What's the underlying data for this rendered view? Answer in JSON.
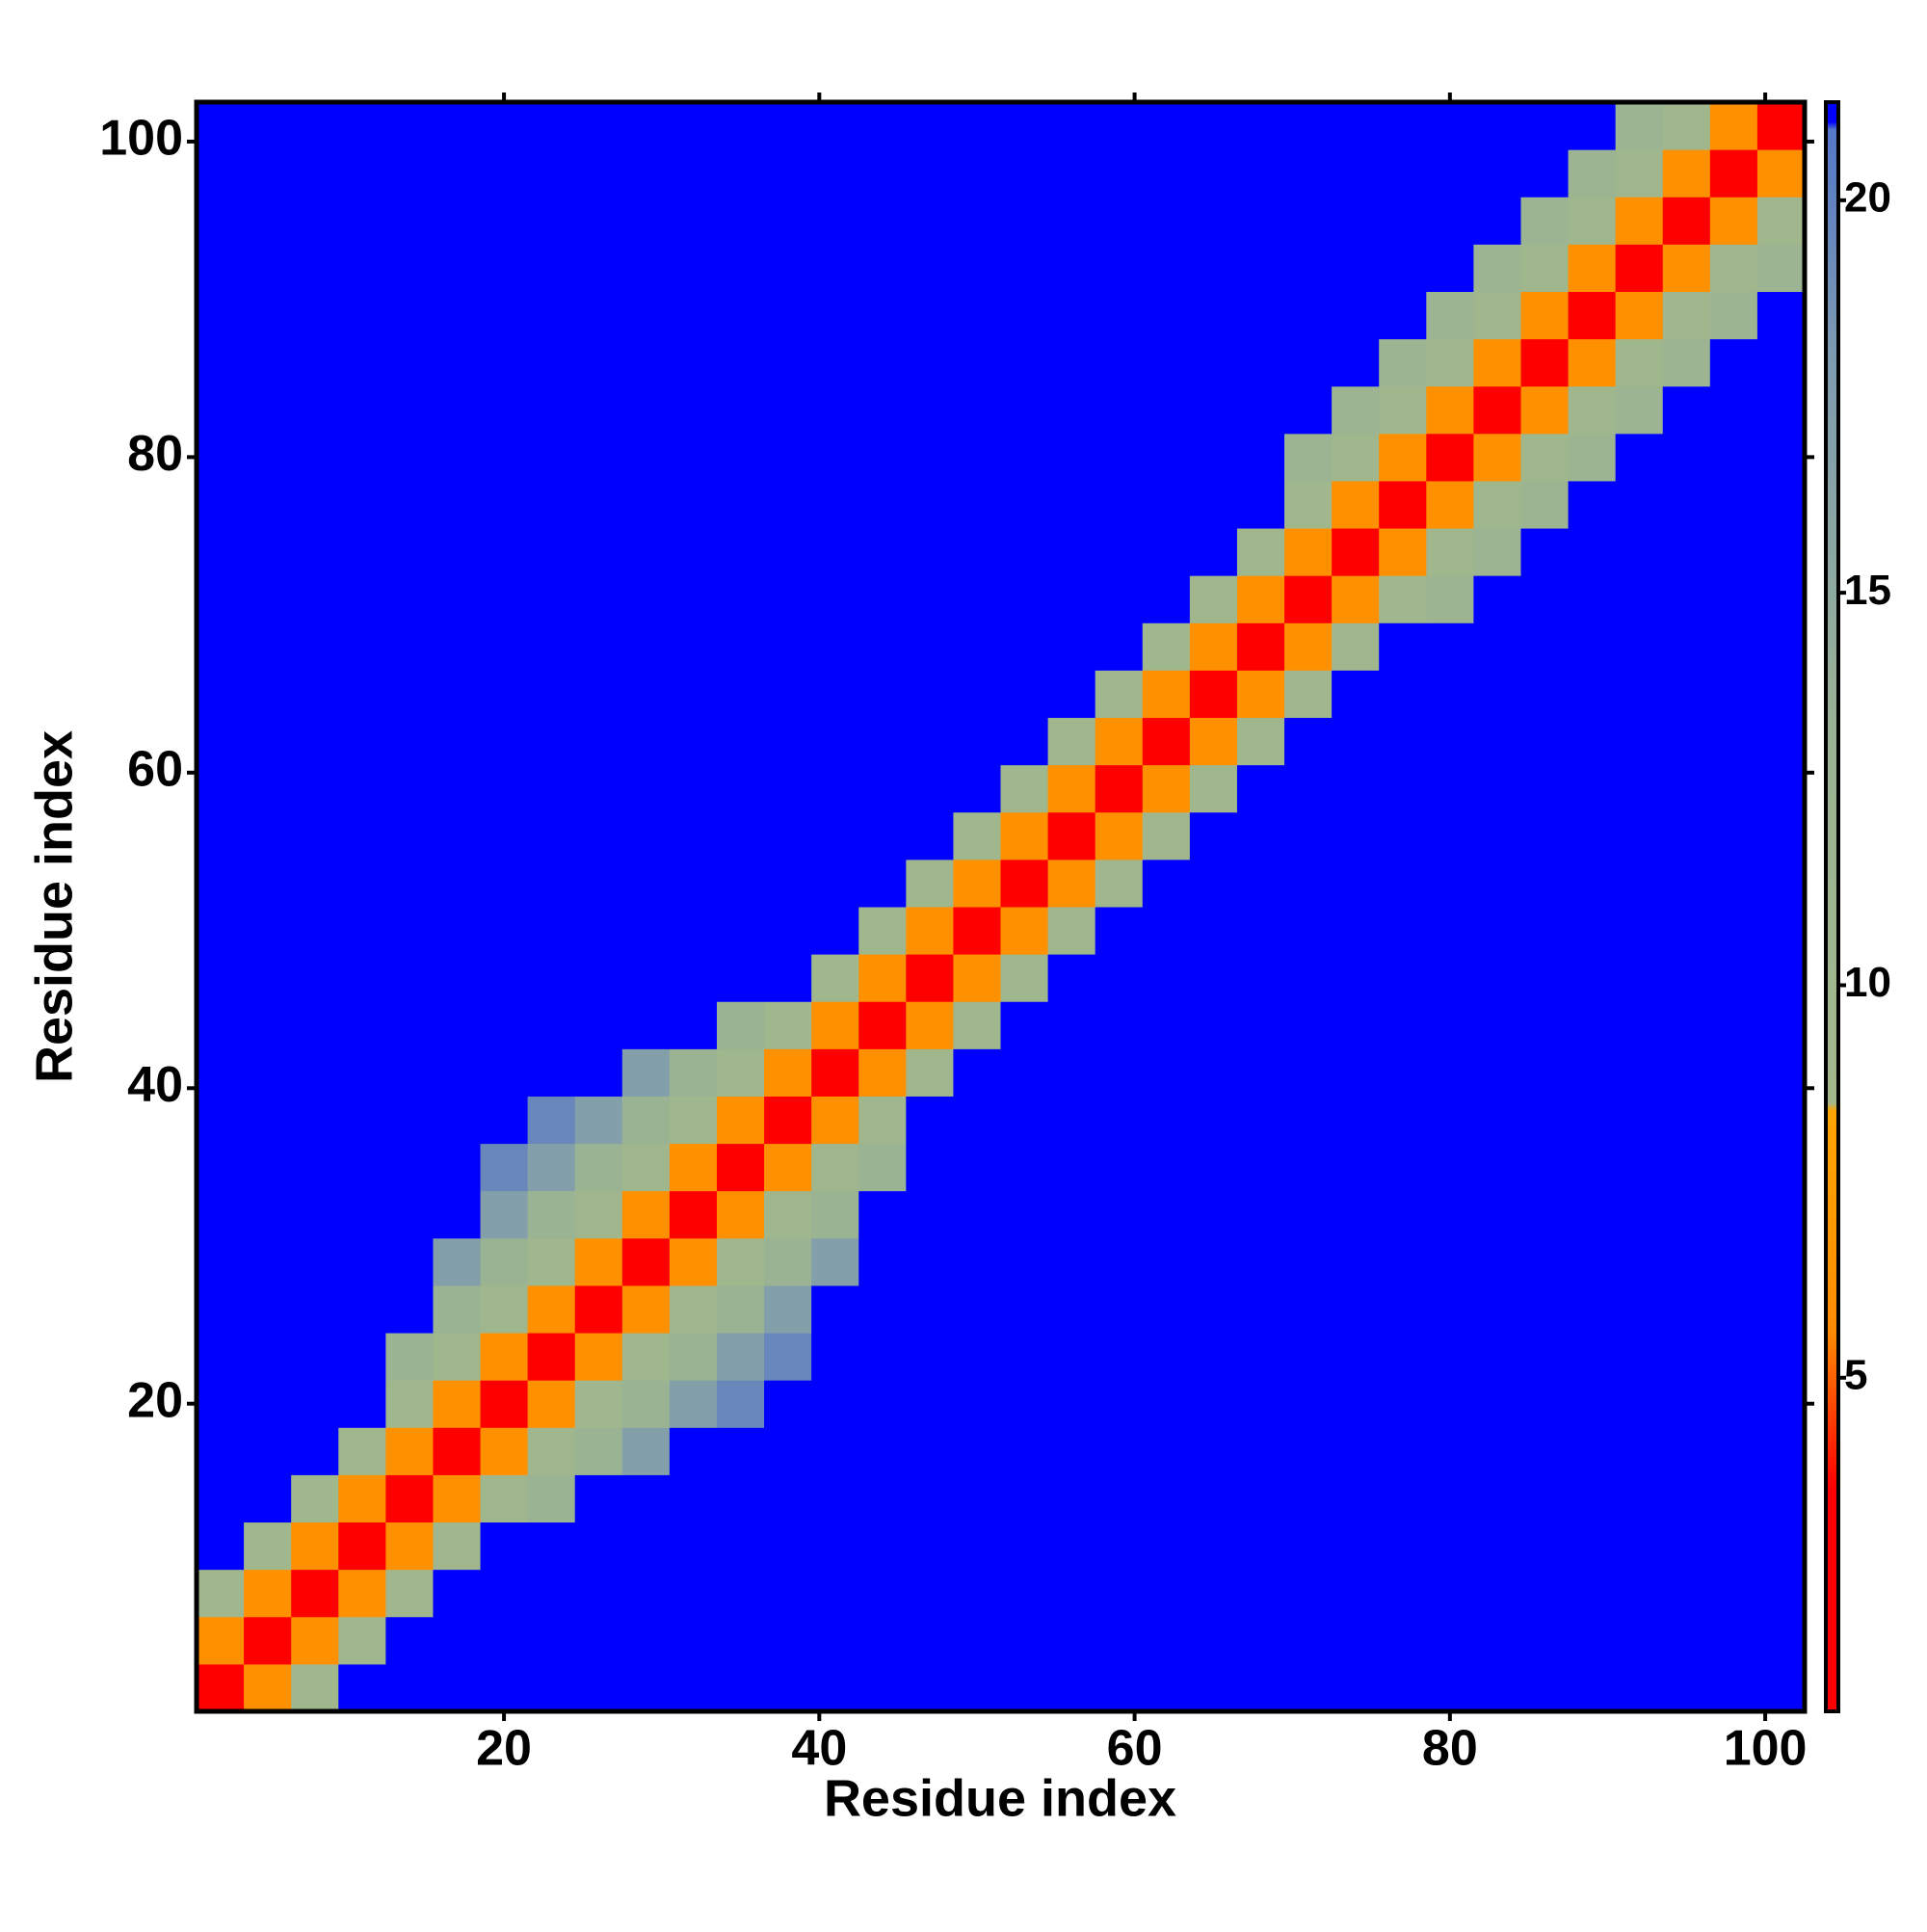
{
  "chart_data": {
    "type": "heatmap",
    "xlabel": "Residue index",
    "ylabel": "Residue index",
    "x": [
      2,
      5,
      8,
      11,
      14,
      17,
      20,
      23,
      26,
      29,
      32,
      35,
      38,
      41,
      44,
      47,
      50,
      53,
      56,
      59,
      62,
      65,
      68,
      71,
      74,
      77,
      80,
      83,
      86,
      89,
      92,
      95,
      98,
      101
    ],
    "y": [
      2,
      5,
      8,
      11,
      14,
      17,
      20,
      23,
      26,
      29,
      32,
      35,
      38,
      41,
      44,
      47,
      50,
      53,
      56,
      59,
      62,
      65,
      68,
      71,
      74,
      77,
      80,
      83,
      86,
      89,
      92,
      95,
      98,
      101
    ],
    "z": [
      [
        1.5,
        6,
        10,
        21,
        21,
        21,
        21,
        21,
        21,
        21,
        21,
        21,
        21,
        21,
        21,
        21,
        21,
        21,
        21,
        21,
        21,
        21,
        21,
        21,
        21,
        21,
        21,
        21,
        21,
        21,
        21,
        21,
        21,
        21
      ],
      [
        6,
        1.5,
        6,
        10,
        21,
        21,
        21,
        21,
        21,
        21,
        21,
        21,
        21,
        21,
        21,
        21,
        21,
        21,
        21,
        21,
        21,
        21,
        21,
        21,
        21,
        21,
        21,
        21,
        21,
        21,
        21,
        21,
        21,
        21
      ],
      [
        10,
        6,
        1.5,
        6,
        10,
        21,
        21,
        21,
        21,
        21,
        21,
        21,
        21,
        21,
        21,
        21,
        21,
        21,
        21,
        21,
        21,
        21,
        21,
        21,
        21,
        21,
        21,
        21,
        21,
        21,
        21,
        21,
        21,
        21
      ],
      [
        21,
        10,
        6,
        1.5,
        6,
        10,
        21,
        21,
        21,
        21,
        21,
        21,
        21,
        21,
        21,
        21,
        21,
        21,
        21,
        21,
        21,
        21,
        21,
        21,
        21,
        21,
        21,
        21,
        21,
        21,
        21,
        21,
        21,
        21
      ],
      [
        21,
        21,
        10,
        6,
        1.5,
        6,
        10,
        13,
        21,
        21,
        21,
        21,
        21,
        21,
        21,
        21,
        21,
        21,
        21,
        21,
        21,
        21,
        21,
        21,
        21,
        21,
        21,
        21,
        21,
        21,
        21,
        21,
        21,
        21
      ],
      [
        21,
        21,
        21,
        10,
        6,
        1.5,
        6,
        10,
        13,
        17,
        21,
        21,
        21,
        21,
        21,
        21,
        21,
        21,
        21,
        21,
        21,
        21,
        21,
        21,
        21,
        21,
        21,
        21,
        21,
        21,
        21,
        21,
        21,
        21
      ],
      [
        21,
        21,
        21,
        21,
        10,
        6,
        1.5,
        6,
        10,
        13,
        17,
        19.5,
        21,
        21,
        21,
        21,
        21,
        21,
        21,
        21,
        21,
        21,
        21,
        21,
        21,
        21,
        21,
        21,
        21,
        21,
        21,
        21,
        21,
        21
      ],
      [
        21,
        21,
        21,
        21,
        13,
        10,
        6,
        1.5,
        6,
        10,
        13,
        17,
        19.5,
        21,
        21,
        21,
        21,
        21,
        21,
        21,
        21,
        21,
        21,
        21,
        21,
        21,
        21,
        21,
        21,
        21,
        21,
        21,
        21,
        21
      ],
      [
        21,
        21,
        21,
        21,
        21,
        13,
        10,
        6,
        1.5,
        6,
        10,
        13,
        17,
        21,
        21,
        21,
        21,
        21,
        21,
        21,
        21,
        21,
        21,
        21,
        21,
        21,
        21,
        21,
        21,
        21,
        21,
        21,
        21,
        21
      ],
      [
        21,
        21,
        21,
        21,
        21,
        17,
        13,
        10,
        6,
        1.5,
        6,
        10,
        13,
        17,
        21,
        21,
        21,
        21,
        21,
        21,
        21,
        21,
        21,
        21,
        21,
        21,
        21,
        21,
        21,
        21,
        21,
        21,
        21,
        21
      ],
      [
        21,
        21,
        21,
        21,
        21,
        21,
        17,
        13,
        10,
        6,
        1.5,
        6,
        10,
        13,
        21,
        21,
        21,
        21,
        21,
        21,
        21,
        21,
        21,
        21,
        21,
        21,
        21,
        21,
        21,
        21,
        21,
        21,
        21,
        21
      ],
      [
        21,
        21,
        21,
        21,
        21,
        21,
        19.5,
        17,
        13,
        10,
        6,
        1.5,
        6,
        10,
        13,
        21,
        21,
        21,
        21,
        21,
        21,
        21,
        21,
        21,
        21,
        21,
        21,
        21,
        21,
        21,
        21,
        21,
        21,
        21
      ],
      [
        21,
        21,
        21,
        21,
        21,
        21,
        21,
        19.5,
        17,
        13,
        10,
        6,
        1.5,
        6,
        10,
        21,
        21,
        21,
        21,
        21,
        21,
        21,
        21,
        21,
        21,
        21,
        21,
        21,
        21,
        21,
        21,
        21,
        21,
        21
      ],
      [
        21,
        21,
        21,
        21,
        21,
        21,
        21,
        21,
        21,
        17,
        13,
        10,
        6,
        1.5,
        6,
        10,
        21,
        21,
        21,
        21,
        21,
        21,
        21,
        21,
        21,
        21,
        21,
        21,
        21,
        21,
        21,
        21,
        21,
        21
      ],
      [
        21,
        21,
        21,
        21,
        21,
        21,
        21,
        21,
        21,
        21,
        21,
        13,
        10,
        6,
        1.5,
        6,
        10,
        21,
        21,
        21,
        21,
        21,
        21,
        21,
        21,
        21,
        21,
        21,
        21,
        21,
        21,
        21,
        21,
        21
      ],
      [
        21,
        21,
        21,
        21,
        21,
        21,
        21,
        21,
        21,
        21,
        21,
        21,
        21,
        10,
        6,
        1.5,
        6,
        10,
        21,
        21,
        21,
        21,
        21,
        21,
        21,
        21,
        21,
        21,
        21,
        21,
        21,
        21,
        21,
        21
      ],
      [
        21,
        21,
        21,
        21,
        21,
        21,
        21,
        21,
        21,
        21,
        21,
        21,
        21,
        21,
        10,
        6,
        1.5,
        6,
        10,
        21,
        21,
        21,
        21,
        21,
        21,
        21,
        21,
        21,
        21,
        21,
        21,
        21,
        21,
        21
      ],
      [
        21,
        21,
        21,
        21,
        21,
        21,
        21,
        21,
        21,
        21,
        21,
        21,
        21,
        21,
        21,
        10,
        6,
        1.5,
        6,
        10,
        21,
        21,
        21,
        21,
        21,
        21,
        21,
        21,
        21,
        21,
        21,
        21,
        21,
        21
      ],
      [
        21,
        21,
        21,
        21,
        21,
        21,
        21,
        21,
        21,
        21,
        21,
        21,
        21,
        21,
        21,
        21,
        10,
        6,
        1.5,
        6,
        10,
        21,
        21,
        21,
        21,
        21,
        21,
        21,
        21,
        21,
        21,
        21,
        21,
        21
      ],
      [
        21,
        21,
        21,
        21,
        21,
        21,
        21,
        21,
        21,
        21,
        21,
        21,
        21,
        21,
        21,
        21,
        21,
        10,
        6,
        1.5,
        6,
        10,
        21,
        21,
        21,
        21,
        21,
        21,
        21,
        21,
        21,
        21,
        21,
        21
      ],
      [
        21,
        21,
        21,
        21,
        21,
        21,
        21,
        21,
        21,
        21,
        21,
        21,
        21,
        21,
        21,
        21,
        21,
        21,
        10,
        6,
        1.5,
        6,
        10,
        21,
        21,
        21,
        21,
        21,
        21,
        21,
        21,
        21,
        21,
        21
      ],
      [
        21,
        21,
        21,
        21,
        21,
        21,
        21,
        21,
        21,
        21,
        21,
        21,
        21,
        21,
        21,
        21,
        21,
        21,
        21,
        10,
        6,
        1.5,
        6,
        10,
        21,
        21,
        21,
        21,
        21,
        21,
        21,
        21,
        21,
        21
      ],
      [
        21,
        21,
        21,
        21,
        21,
        21,
        21,
        21,
        21,
        21,
        21,
        21,
        21,
        21,
        21,
        21,
        21,
        21,
        21,
        21,
        10,
        6,
        1.5,
        6,
        10,
        21,
        21,
        21,
        21,
        21,
        21,
        21,
        21,
        21
      ],
      [
        21,
        21,
        21,
        21,
        21,
        21,
        21,
        21,
        21,
        21,
        21,
        21,
        21,
        21,
        21,
        21,
        21,
        21,
        21,
        21,
        21,
        10,
        6,
        1.5,
        6,
        10,
        12,
        21,
        21,
        21,
        21,
        21,
        21,
        21
      ],
      [
        21,
        21,
        21,
        21,
        21,
        21,
        21,
        21,
        21,
        21,
        21,
        21,
        21,
        21,
        21,
        21,
        21,
        21,
        21,
        21,
        21,
        21,
        10,
        6,
        1.5,
        6,
        10,
        12,
        21,
        21,
        21,
        21,
        21,
        21
      ],
      [
        21,
        21,
        21,
        21,
        21,
        21,
        21,
        21,
        21,
        21,
        21,
        21,
        21,
        21,
        21,
        21,
        21,
        21,
        21,
        21,
        21,
        21,
        21,
        10,
        6,
        1.5,
        6,
        10,
        12,
        21,
        21,
        21,
        21,
        21
      ],
      [
        21,
        21,
        21,
        21,
        21,
        21,
        21,
        21,
        21,
        21,
        21,
        21,
        21,
        21,
        21,
        21,
        21,
        21,
        21,
        21,
        21,
        21,
        21,
        12,
        10,
        6,
        1.5,
        6,
        10,
        12,
        21,
        21,
        21,
        21
      ],
      [
        21,
        21,
        21,
        21,
        21,
        21,
        21,
        21,
        21,
        21,
        21,
        21,
        21,
        21,
        21,
        21,
        21,
        21,
        21,
        21,
        21,
        21,
        21,
        21,
        12,
        10,
        6,
        1.5,
        6,
        10,
        12,
        21,
        21,
        21
      ],
      [
        21,
        21,
        21,
        21,
        21,
        21,
        21,
        21,
        21,
        21,
        21,
        21,
        21,
        21,
        21,
        21,
        21,
        21,
        21,
        21,
        21,
        21,
        21,
        21,
        21,
        12,
        10,
        6,
        1.5,
        6,
        10,
        12,
        21,
        21
      ],
      [
        21,
        21,
        21,
        21,
        21,
        21,
        21,
        21,
        21,
        21,
        21,
        21,
        21,
        21,
        21,
        21,
        21,
        21,
        21,
        21,
        21,
        21,
        21,
        21,
        21,
        21,
        12,
        10,
        6,
        1.5,
        6,
        10,
        12,
        21
      ],
      [
        21,
        21,
        21,
        21,
        21,
        21,
        21,
        21,
        21,
        21,
        21,
        21,
        21,
        21,
        21,
        21,
        21,
        21,
        21,
        21,
        21,
        21,
        21,
        21,
        21,
        21,
        21,
        12,
        10,
        6,
        1.5,
        6,
        10,
        12
      ],
      [
        21,
        21,
        21,
        21,
        21,
        21,
        21,
        21,
        21,
        21,
        21,
        21,
        21,
        21,
        21,
        21,
        21,
        21,
        21,
        21,
        21,
        21,
        21,
        21,
        21,
        21,
        21,
        21,
        12,
        10,
        6,
        1.5,
        6,
        10
      ],
      [
        21,
        21,
        21,
        21,
        21,
        21,
        21,
        21,
        21,
        21,
        21,
        21,
        21,
        21,
        21,
        21,
        21,
        21,
        21,
        21,
        21,
        21,
        21,
        21,
        21,
        21,
        21,
        21,
        21,
        12,
        10,
        6,
        1.5,
        6
      ],
      [
        21,
        21,
        21,
        21,
        21,
        21,
        21,
        21,
        21,
        21,
        21,
        21,
        21,
        21,
        21,
        21,
        21,
        21,
        21,
        21,
        21,
        21,
        21,
        21,
        21,
        21,
        21,
        21,
        21,
        21,
        12,
        10,
        6,
        1.5
      ]
    ],
    "xlim": [
      0.5,
      102.5
    ],
    "ylim": [
      0.5,
      102.5
    ],
    "xticks": [
      20,
      40,
      60,
      80,
      100
    ],
    "yticks": [
      20,
      40,
      60,
      80,
      100
    ],
    "zlim": [
      0.75,
      21.25
    ],
    "zticks": [
      5,
      10,
      15,
      20
    ],
    "colorscale": [
      [
        0.75,
        "#ff0000"
      ],
      [
        3.6,
        "#ff0000"
      ],
      [
        4.6,
        "#ff4500"
      ],
      [
        5.6,
        "#ff8c00"
      ],
      [
        8.4,
        "#ffa500"
      ],
      [
        8.5,
        "#a3b78a"
      ],
      [
        13,
        "#9ab393"
      ],
      [
        18,
        "#7d9bb0"
      ],
      [
        20.9,
        "#5577c8"
      ],
      [
        21,
        "#0000ff"
      ],
      [
        21.25,
        "#0000ff"
      ]
    ]
  }
}
